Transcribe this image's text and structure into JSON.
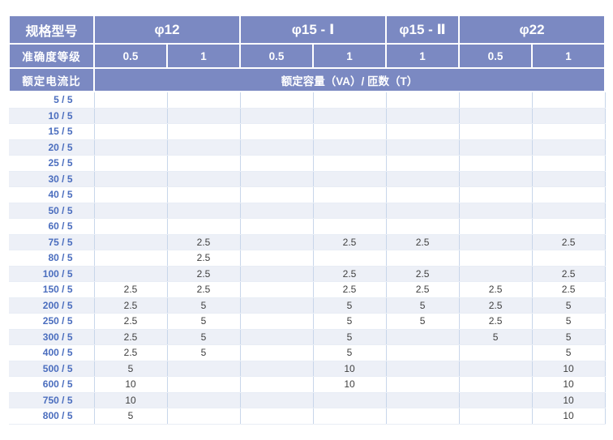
{
  "header": {
    "spec_label": "规格型号",
    "models": [
      {
        "label": "φ12",
        "span": 2
      },
      {
        "label": "φ15 - Ⅰ",
        "span": 2
      },
      {
        "label": "φ15 - Ⅱ",
        "span": 1
      },
      {
        "label": "φ22",
        "span": 2
      }
    ],
    "accuracy_label": "准确度等级",
    "accuracy_classes": [
      "0.5",
      "1",
      "0.5",
      "1",
      "1",
      "0.5",
      "1"
    ],
    "ratio_label": "额定电流比",
    "capacity_label": "额定容量（VA）/ 匝数（T）"
  },
  "rows": [
    {
      "ratio": "5 / 5",
      "values": [
        "",
        "",
        "",
        "",
        "",
        "",
        ""
      ]
    },
    {
      "ratio": "10 / 5",
      "values": [
        "",
        "",
        "",
        "",
        "",
        "",
        ""
      ]
    },
    {
      "ratio": "15 / 5",
      "values": [
        "",
        "",
        "",
        "",
        "",
        "",
        ""
      ]
    },
    {
      "ratio": "20 / 5",
      "values": [
        "",
        "",
        "",
        "",
        "",
        "",
        ""
      ]
    },
    {
      "ratio": "25 / 5",
      "values": [
        "",
        "",
        "",
        "",
        "",
        "",
        ""
      ]
    },
    {
      "ratio": "30 / 5",
      "values": [
        "",
        "",
        "",
        "",
        "",
        "",
        ""
      ]
    },
    {
      "ratio": "40 / 5",
      "values": [
        "",
        "",
        "",
        "",
        "",
        "",
        ""
      ]
    },
    {
      "ratio": "50 / 5",
      "values": [
        "",
        "",
        "",
        "",
        "",
        "",
        ""
      ]
    },
    {
      "ratio": "60 / 5",
      "values": [
        "",
        "",
        "",
        "",
        "",
        "",
        ""
      ]
    },
    {
      "ratio": "75 / 5",
      "values": [
        "",
        "2.5",
        "",
        "2.5",
        "2.5",
        "",
        "2.5"
      ]
    },
    {
      "ratio": "80 / 5",
      "values": [
        "",
        "2.5",
        "",
        "",
        "",
        "",
        ""
      ]
    },
    {
      "ratio": "100 / 5",
      "values": [
        "",
        "2.5",
        "",
        "2.5",
        "2.5",
        "",
        "2.5"
      ]
    },
    {
      "ratio": "150 / 5",
      "values": [
        "2.5",
        "2.5",
        "",
        "2.5",
        "2.5",
        "2.5",
        "2.5"
      ]
    },
    {
      "ratio": "200 / 5",
      "values": [
        "2.5",
        "5",
        "",
        "5",
        "5",
        "2.5",
        "5"
      ]
    },
    {
      "ratio": "250 / 5",
      "values": [
        "2.5",
        "5",
        "",
        "5",
        "5",
        "2.5",
        "5"
      ]
    },
    {
      "ratio": "300 / 5",
      "values": [
        "2.5",
        "5",
        "",
        "5",
        "",
        "5",
        "5"
      ]
    },
    {
      "ratio": "400 / 5",
      "values": [
        "2.5",
        "5",
        "",
        "5",
        "",
        "",
        "5"
      ]
    },
    {
      "ratio": "500 / 5",
      "values": [
        "5",
        "",
        "",
        "10",
        "",
        "",
        "10"
      ]
    },
    {
      "ratio": "600 / 5",
      "values": [
        "10",
        "",
        "",
        "10",
        "",
        "",
        "10"
      ]
    },
    {
      "ratio": "750 / 5",
      "values": [
        "10",
        "",
        "",
        "",
        "",
        "",
        "10"
      ]
    },
    {
      "ratio": "800 / 5",
      "values": [
        "5",
        "",
        "",
        "",
        "",
        "",
        "10"
      ]
    }
  ],
  "colors": {
    "header_bg": "#7b89c2",
    "header_text": "#ffffff",
    "row_alt_bg": "#edf0f7",
    "row_bg": "#ffffff",
    "ratio_text": "#4a6dbe",
    "value_text": "#404040",
    "column_border": "#c8d6ea",
    "footer_strip_bg": "#edf0f5"
  }
}
